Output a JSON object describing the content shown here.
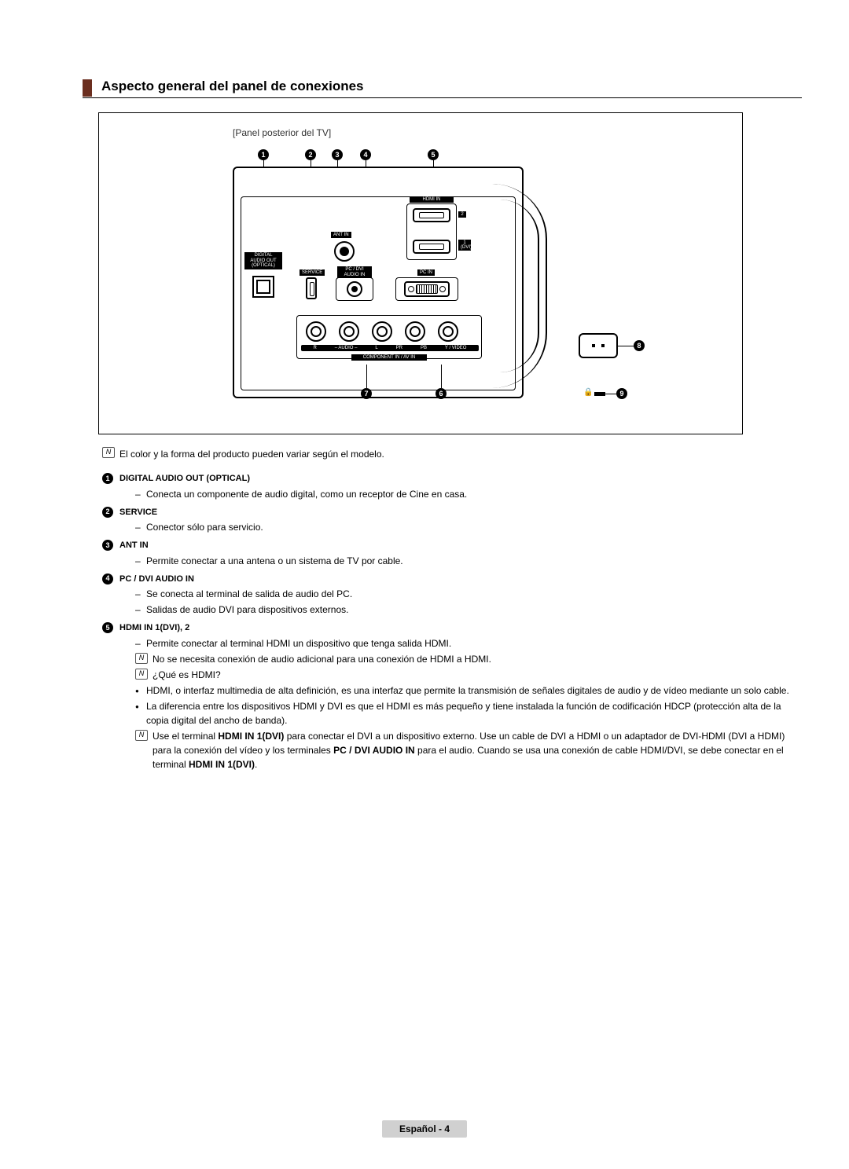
{
  "header": {
    "title": "Aspecto general del panel de conexiones"
  },
  "diagram": {
    "caption": "[Panel posterior del TV]",
    "labels": {
      "hdmi_in": "HDMI IN",
      "ant_in": "ANT IN",
      "digital_audio": "DIGITAL\nAUDIO OUT\n(OPTICAL)",
      "service": "SERVICE",
      "pcdvi_audio": "PC / DVI\nAUDIO IN",
      "pc_in": "PC IN",
      "component_strip": "COMPONENT IN / AV IN",
      "audio_r": "R",
      "audio_l": "L",
      "audio_txt": "AUDIO",
      "pr": "PR",
      "pb": "PB",
      "yvideo": "Y / VIDEO",
      "hdmi2_num": "2",
      "hdmi1_num": "1\n(DVI)"
    }
  },
  "global_note": "El color y la forma del producto pueden variar según el modelo.",
  "items": [
    {
      "num": "1",
      "title": "DIGITAL AUDIO OUT (OPTICAL)",
      "lines": [
        {
          "kind": "dash",
          "text": "Conecta un componente de audio digital, como un receptor de Cine en casa."
        }
      ]
    },
    {
      "num": "2",
      "title": "SERVICE",
      "lines": [
        {
          "kind": "dash",
          "text": "Conector sólo para servicio."
        }
      ]
    },
    {
      "num": "3",
      "title": "ANT IN",
      "lines": [
        {
          "kind": "dash",
          "text": "Permite conectar a una antena o un sistema de TV por cable."
        }
      ]
    },
    {
      "num": "4",
      "title": "PC / DVI AUDIO IN",
      "lines": [
        {
          "kind": "dash",
          "text": "Se conecta al terminal de salida de audio del PC."
        },
        {
          "kind": "dash",
          "text": "Salidas de audio DVI para dispositivos externos."
        }
      ]
    },
    {
      "num": "5",
      "title": "HDMI IN 1(DVI), 2",
      "lines": [
        {
          "kind": "dash",
          "text": "Permite conectar al terminal HDMI un dispositivo que tenga salida HDMI."
        },
        {
          "kind": "note",
          "text": "No se necesita conexión de audio adicional para una conexión de HDMI a HDMI."
        },
        {
          "kind": "note",
          "text": "¿Qué es HDMI?"
        },
        {
          "kind": "bullet",
          "text": "HDMI, o interfaz multimedia de alta definición, es una interfaz que permite la transmisión de señales digitales de audio y de vídeo mediante un solo cable."
        },
        {
          "kind": "bullet",
          "text": "La diferencia entre los dispositivos HDMI y DVI es que el HDMI es más pequeño y tiene instalada la función de codificación HDCP (protección alta de la copia digital del ancho de banda)."
        },
        {
          "kind": "note",
          "html": "Use el terminal <b>HDMI IN 1(DVI)</b> para conectar el DVI a un dispositivo externo. Use un cable de DVI a HDMI o un adaptador de DVI-HDMI (DVI a HDMI) para la conexión del vídeo y los terminales <b>PC / DVI AUDIO IN</b> para el audio. Cuando se usa una conexión de cable HDMI/DVI, se debe conectar en el terminal <b>HDMI IN 1(DVI)</b>."
        }
      ]
    }
  ],
  "footer": {
    "text": "Español - 4"
  },
  "colors": {
    "accent": "#6b2e1f",
    "footer_bg": "#d0d0d0"
  }
}
